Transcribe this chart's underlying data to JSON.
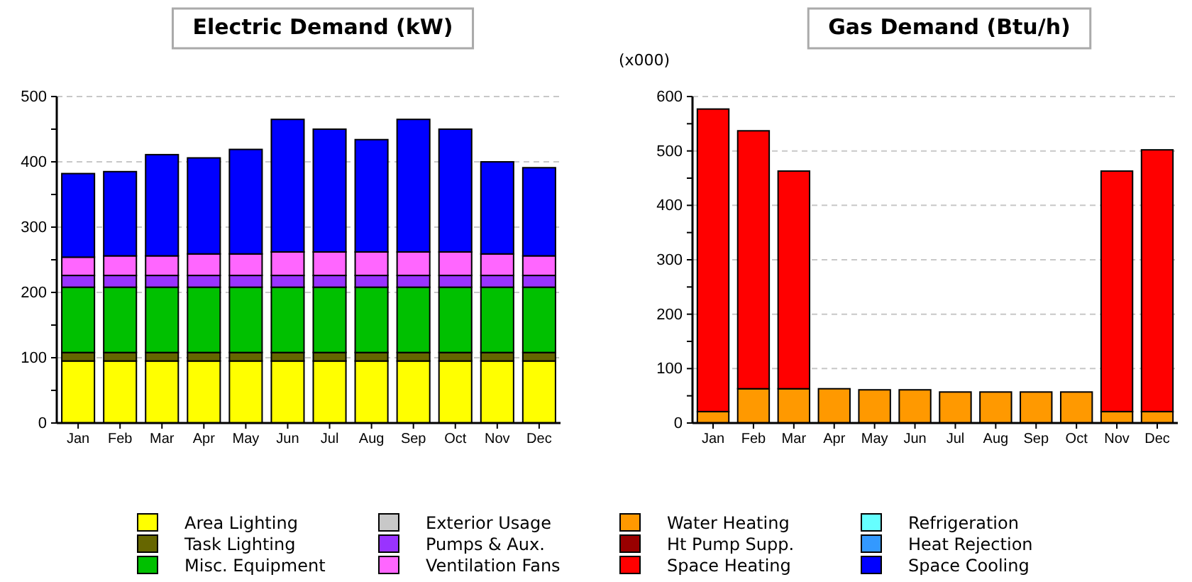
{
  "chart_data": [
    {
      "type": "bar",
      "title": "Electric Demand (kW)",
      "stacked": true,
      "grid": "y",
      "legend": "bottom",
      "categories": [
        "Jan",
        "Feb",
        "Mar",
        "Apr",
        "May",
        "Jun",
        "Jul",
        "Aug",
        "Sep",
        "Oct",
        "Nov",
        "Dec"
      ],
      "ylim": [
        0,
        500
      ],
      "yticks": [
        0,
        {
          "value": 50,
          "label": null
        },
        100,
        {
          "value": 150,
          "label": null
        },
        200,
        {
          "value": 250,
          "label": null
        },
        300,
        {
          "value": 350,
          "label": null
        },
        400,
        {
          "value": 450,
          "label": null
        },
        500
      ],
      "series": [
        {
          "name": "Area Lighting",
          "color": "#ffff00",
          "values": [
            95,
            95,
            95,
            95,
            95,
            95,
            95,
            95,
            95,
            95,
            95,
            95
          ]
        },
        {
          "name": "Task Lighting",
          "color": "#666600",
          "values": [
            13,
            13,
            13,
            13,
            13,
            13,
            13,
            13,
            13,
            13,
            13,
            13
          ]
        },
        {
          "name": "Misc. Equipment",
          "color": "#00c000",
          "values": [
            100,
            100,
            100,
            100,
            100,
            100,
            100,
            100,
            100,
            100,
            100,
            100
          ]
        },
        {
          "name": "Exterior Usage",
          "color": "#c8c8c8",
          "values": [
            0,
            0,
            0,
            0,
            0,
            0,
            0,
            0,
            0,
            0,
            0,
            0
          ]
        },
        {
          "name": "Pumps & Aux.",
          "color": "#9933ff",
          "values": [
            18,
            18,
            18,
            18,
            18,
            18,
            18,
            18,
            18,
            18,
            18,
            18
          ]
        },
        {
          "name": "Ventilation Fans",
          "color": "#ff66ff",
          "values": [
            28,
            30,
            30,
            33,
            33,
            36,
            36,
            36,
            36,
            36,
            33,
            30
          ]
        },
        {
          "name": "Refrigeration",
          "color": "#66ffff",
          "values": [
            0,
            0,
            0,
            0,
            0,
            0,
            0,
            0,
            0,
            0,
            0,
            0
          ]
        },
        {
          "name": "Heat Rejection",
          "color": "#3399ff",
          "values": [
            0,
            0,
            0,
            0,
            0,
            0,
            0,
            0,
            0,
            0,
            0,
            0
          ]
        },
        {
          "name": "Space Cooling",
          "color": "#0000ff",
          "values": [
            128,
            129,
            155,
            147,
            160,
            203,
            188,
            172,
            203,
            188,
            141,
            135
          ]
        }
      ]
    },
    {
      "type": "bar",
      "title": "Gas Demand (Btu/h)",
      "ylabel": "(x000)",
      "stacked": true,
      "grid": "y",
      "legend": "bottom",
      "categories": [
        "Jan",
        "Feb",
        "Mar",
        "Apr",
        "May",
        "Jun",
        "Jul",
        "Aug",
        "Sep",
        "Oct",
        "Nov",
        "Dec"
      ],
      "ylim": [
        0,
        600
      ],
      "yticks": [
        0,
        {
          "value": 50,
          "label": null
        },
        100,
        {
          "value": 150,
          "label": null
        },
        200,
        {
          "value": 250,
          "label": null
        },
        300,
        {
          "value": 350,
          "label": null
        },
        400,
        {
          "value": 450,
          "label": null
        },
        500,
        {
          "value": 550,
          "label": null
        },
        600
      ],
      "series": [
        {
          "name": "Water Heating",
          "color": "#ff9900",
          "values": [
            21,
            63,
            63,
            63,
            61,
            61,
            57,
            57,
            57,
            57,
            21,
            21
          ]
        },
        {
          "name": "Ht Pump Supp.",
          "color": "#990000",
          "values": [
            0,
            0,
            0,
            0,
            0,
            0,
            0,
            0,
            0,
            0,
            0,
            0
          ]
        },
        {
          "name": "Space Heating",
          "color": "#ff0000",
          "values": [
            556,
            474,
            400,
            0,
            0,
            0,
            0,
            0,
            0,
            0,
            442,
            481
          ]
        }
      ]
    }
  ]
}
